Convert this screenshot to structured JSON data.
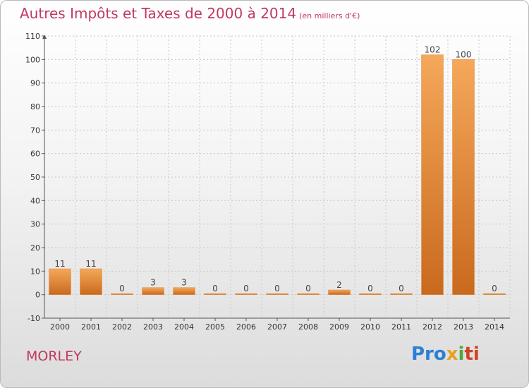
{
  "header": {
    "title": "Autres Impôts et Taxes de 2000 à 2014",
    "unit": "(en milliers d'€)"
  },
  "footer": {
    "commune": "MORLEY",
    "logo": [
      "Pro",
      "x",
      "i",
      "ti"
    ]
  },
  "colors": {
    "bar_light": "#f5a85a",
    "bar_dark": "#c9691e",
    "title": "#c0395f",
    "grid": "#c8c8c8"
  },
  "chart_data": {
    "type": "bar",
    "title": "Autres Impôts et Taxes de 2000 à 2014",
    "subtitle": "(en milliers d'€)",
    "categories": [
      "2000",
      "2001",
      "2002",
      "2003",
      "2004",
      "2005",
      "2006",
      "2007",
      "2008",
      "2009",
      "2010",
      "2011",
      "2012",
      "2013",
      "2014"
    ],
    "values": [
      11,
      11,
      0,
      3,
      3,
      0,
      0,
      0,
      0,
      2,
      0,
      0,
      102,
      100,
      0
    ],
    "data_labels": [
      "11",
      "11",
      "0",
      "3",
      "3",
      "0",
      "0",
      "0",
      "0",
      "2",
      "0",
      "0",
      "102",
      "100",
      "0"
    ],
    "ylim": [
      -10,
      110
    ],
    "yticks": [
      -10,
      0,
      10,
      20,
      30,
      40,
      50,
      60,
      70,
      80,
      90,
      100,
      110
    ],
    "grid": true,
    "legend": "none"
  }
}
